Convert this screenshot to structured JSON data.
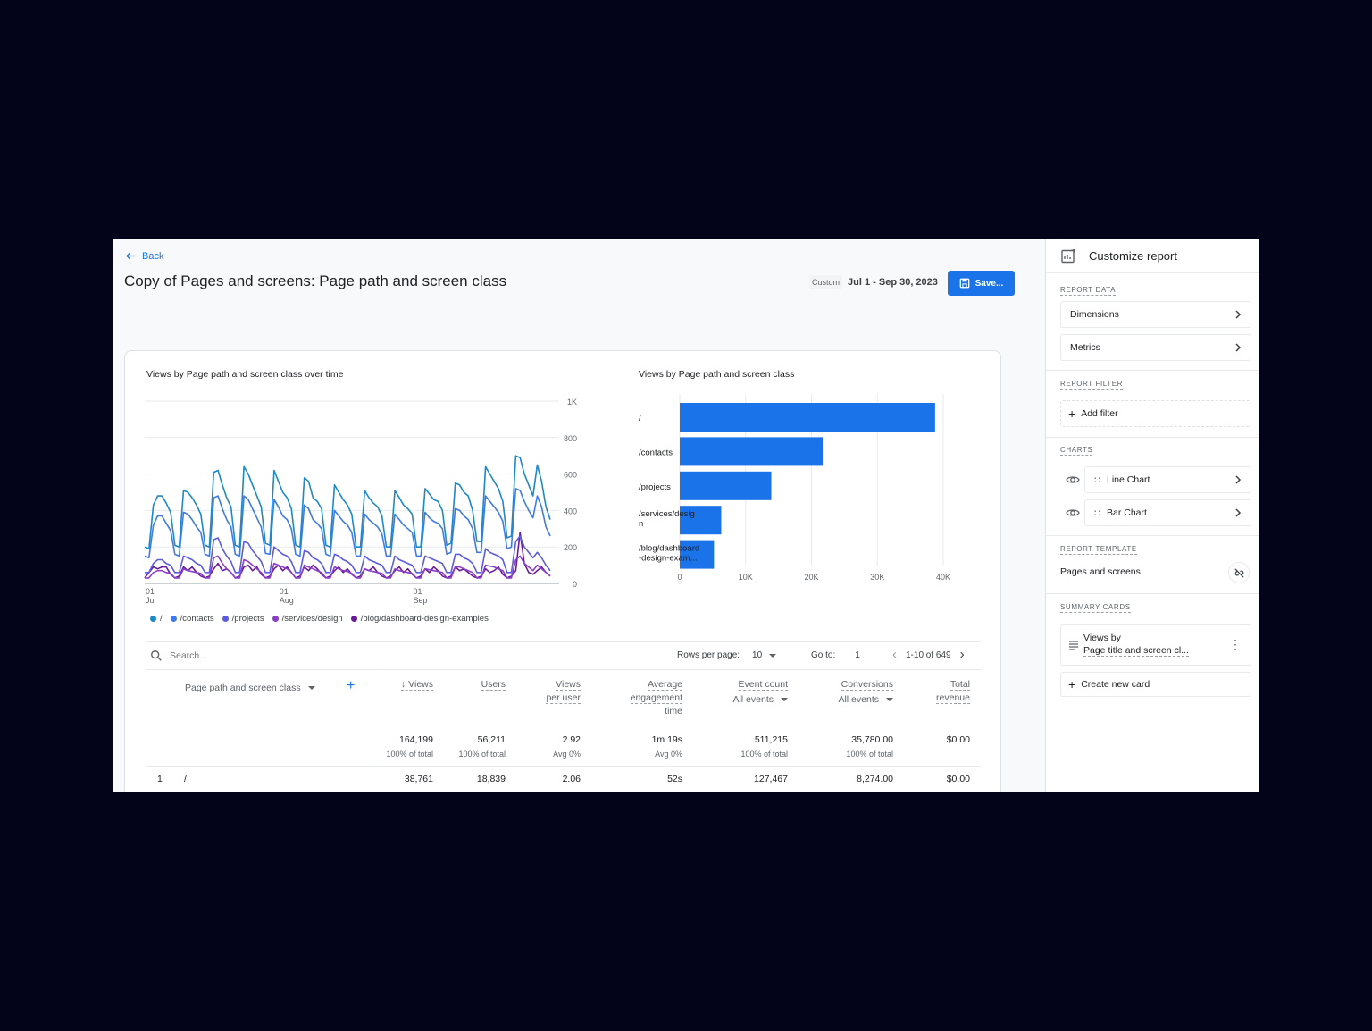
{
  "header": {
    "back_label": "Back",
    "title": "Copy of Pages and screens: Page path and screen class",
    "custom_label": "Custom",
    "date_range": "Jul 1 - Sep 30, 2023",
    "save_label": "Save..."
  },
  "colors": {
    "accent": "#1a73e8",
    "series": [
      "#1e88c8",
      "#3f7be8",
      "#5c5ce0",
      "#8a3fc9",
      "#6a1b9a"
    ]
  },
  "chart_data": [
    {
      "type": "line",
      "title": "Views by Page path and screen class over time",
      "x_ticks": [
        {
          "day": 0,
          "label": [
            "01",
            "Jul"
          ]
        },
        {
          "day": 31,
          "label": [
            "01",
            "Aug"
          ]
        },
        {
          "day": 62,
          "label": [
            "01",
            "Sep"
          ]
        }
      ],
      "y_ticks": [
        "0",
        "200",
        "400",
        "600",
        "800",
        "1K"
      ],
      "ylim": [
        0,
        1000
      ],
      "grid": true,
      "legend_position": "bottom",
      "series": [
        {
          "name": "/",
          "values": [
            200,
            190,
            430,
            480,
            480,
            440,
            390,
            210,
            200,
            510,
            500,
            470,
            430,
            380,
            210,
            200,
            610,
            620,
            540,
            470,
            420,
            210,
            200,
            640,
            600,
            540,
            480,
            420,
            220,
            210,
            620,
            560,
            500,
            470,
            410,
            210,
            200,
            580,
            560,
            470,
            450,
            410,
            210,
            200,
            540,
            500,
            460,
            430,
            380,
            200,
            200,
            510,
            470,
            440,
            420,
            370,
            200,
            200,
            510,
            470,
            430,
            410,
            380,
            200,
            200,
            520,
            490,
            460,
            450,
            400,
            210,
            220,
            550,
            540,
            500,
            480,
            400,
            230,
            230,
            640,
            600,
            560,
            520,
            450,
            250,
            260,
            700,
            690,
            600,
            540,
            480,
            650,
            560,
            420,
            350
          ]
        },
        {
          "name": "/contacts",
          "values": [
            150,
            140,
            320,
            370,
            370,
            330,
            290,
            160,
            150,
            390,
            380,
            350,
            310,
            280,
            160,
            150,
            470,
            480,
            410,
            350,
            310,
            160,
            150,
            480,
            460,
            410,
            360,
            310,
            165,
            160,
            460,
            420,
            370,
            350,
            300,
            160,
            150,
            430,
            410,
            350,
            330,
            300,
            160,
            150,
            400,
            370,
            340,
            320,
            280,
            150,
            150,
            380,
            350,
            330,
            310,
            270,
            150,
            150,
            380,
            350,
            320,
            300,
            280,
            150,
            150,
            390,
            360,
            340,
            330,
            300,
            160,
            170,
            410,
            400,
            370,
            350,
            300,
            170,
            170,
            480,
            450,
            420,
            390,
            340,
            190,
            200,
            520,
            510,
            450,
            400,
            360,
            480,
            420,
            310,
            260
          ]
        },
        {
          "name": "/projects",
          "values": [
            60,
            60,
            110,
            130,
            130,
            110,
            100,
            60,
            60,
            150,
            140,
            130,
            110,
            100,
            60,
            60,
            240,
            250,
            190,
            150,
            120,
            60,
            60,
            230,
            220,
            180,
            150,
            120,
            60,
            60,
            200,
            180,
            160,
            150,
            120,
            60,
            60,
            180,
            170,
            140,
            130,
            110,
            60,
            60,
            160,
            150,
            130,
            120,
            100,
            60,
            60,
            150,
            130,
            120,
            110,
            100,
            60,
            60,
            150,
            130,
            120,
            110,
            100,
            60,
            60,
            150,
            140,
            130,
            120,
            110,
            60,
            60,
            160,
            160,
            140,
            130,
            110,
            60,
            60,
            190,
            170,
            160,
            150,
            130,
            60,
            60,
            230,
            260,
            200,
            170,
            140,
            170,
            140,
            100,
            70
          ]
        },
        {
          "name": "/services/design",
          "values": [
            30,
            30,
            60,
            70,
            70,
            60,
            55,
            30,
            30,
            80,
            70,
            65,
            60,
            55,
            30,
            30,
            140,
            150,
            110,
            80,
            60,
            30,
            30,
            130,
            120,
            100,
            80,
            60,
            30,
            30,
            110,
            100,
            90,
            80,
            60,
            30,
            30,
            100,
            90,
            80,
            70,
            60,
            30,
            30,
            90,
            80,
            70,
            65,
            55,
            30,
            30,
            80,
            70,
            65,
            60,
            55,
            30,
            30,
            80,
            70,
            65,
            60,
            55,
            30,
            30,
            80,
            75,
            70,
            65,
            60,
            30,
            30,
            90,
            90,
            80,
            70,
            60,
            30,
            30,
            100,
            95,
            90,
            80,
            70,
            30,
            30,
            130,
            150,
            110,
            90,
            70,
            100,
            80,
            60,
            40
          ]
        },
        {
          "name": "/blog/dashboard-design-examples",
          "values": [
            30,
            60,
            90,
            80,
            90,
            90,
            50,
            30,
            40,
            90,
            70,
            90,
            60,
            40,
            30,
            40,
            80,
            110,
            70,
            80,
            60,
            30,
            40,
            90,
            100,
            70,
            90,
            50,
            30,
            40,
            80,
            100,
            70,
            90,
            60,
            30,
            40,
            90,
            70,
            100,
            80,
            50,
            30,
            40,
            70,
            90,
            60,
            80,
            50,
            30,
            40,
            80,
            70,
            90,
            60,
            40,
            30,
            40,
            70,
            90,
            60,
            80,
            50,
            30,
            40,
            80,
            60,
            90,
            70,
            40,
            30,
            40,
            90,
            70,
            80,
            60,
            40,
            30,
            40,
            80,
            60,
            70,
            90,
            50,
            30,
            40,
            70,
            280,
            110,
            60,
            50,
            70,
            90,
            60,
            40
          ]
        }
      ]
    },
    {
      "type": "bar",
      "orientation": "horizontal",
      "title": "Views by Page path and screen class",
      "categories": [
        [
          "/"
        ],
        [
          "/contacts"
        ],
        [
          "/projects"
        ],
        [
          "/services/desig",
          "n"
        ],
        [
          "/blog/dashboard",
          "-design-exam..."
        ]
      ],
      "values": [
        38761,
        21700,
        13900,
        6300,
        5200
      ],
      "x_ticks": [
        {
          "value": 0,
          "label": "0"
        },
        {
          "value": 10000,
          "label": "10K"
        },
        {
          "value": 20000,
          "label": "20K"
        },
        {
          "value": 30000,
          "label": "30K"
        },
        {
          "value": 40000,
          "label": "40K"
        }
      ],
      "xlim": [
        0,
        40000
      ],
      "grid": true
    }
  ],
  "table": {
    "search_placeholder": "Search...",
    "rows_per_page_label": "Rows per page:",
    "rows_per_page_value": "10",
    "goto_label": "Go to:",
    "goto_value": "1",
    "pagination": "1-10 of 649",
    "dimension_header": "Page path and screen class",
    "columns": [
      {
        "lines": [
          "↓ Views"
        ],
        "total": "164,199",
        "pct": "100% of total"
      },
      {
        "lines": [
          "Users"
        ],
        "total": "56,211",
        "pct": "100% of total"
      },
      {
        "lines": [
          "Views",
          "per user"
        ],
        "total": "2.92",
        "pct": "Avg 0%"
      },
      {
        "lines": [
          "Average",
          "engagement",
          "time"
        ],
        "total": "1m 19s",
        "pct": "Avg 0%"
      },
      {
        "lines": [
          "Event count"
        ],
        "sub": "All events",
        "total": "511,215",
        "pct": "100% of total"
      },
      {
        "lines": [
          "Conversions"
        ],
        "sub": "All events",
        "total": "35,780.00",
        "pct": "100% of total"
      },
      {
        "lines": [
          "Total",
          "revenue"
        ],
        "total": "$0.00",
        "pct": ""
      }
    ],
    "rows": [
      {
        "index": "1",
        "dimension": "/",
        "values": [
          "38,761",
          "18,839",
          "2.06",
          "52s",
          "127,467",
          "8,274.00",
          "$0.00"
        ]
      }
    ]
  },
  "sidebar": {
    "title": "Customize report",
    "report_data_label": "REPORT DATA",
    "dimensions_label": "Dimensions",
    "metrics_label": "Metrics",
    "report_filter_label": "REPORT FILTER",
    "add_filter_label": "Add filter",
    "charts_label": "CHARTS",
    "chart_items": [
      "Line Chart",
      "Bar Chart"
    ],
    "report_template_label": "REPORT TEMPLATE",
    "template_name": "Pages and screens",
    "summary_cards_label": "SUMMARY CARDS",
    "summary_card_line1": "Views by",
    "summary_card_line2": "Page title and screen cl...",
    "create_card_label": "Create new card"
  }
}
